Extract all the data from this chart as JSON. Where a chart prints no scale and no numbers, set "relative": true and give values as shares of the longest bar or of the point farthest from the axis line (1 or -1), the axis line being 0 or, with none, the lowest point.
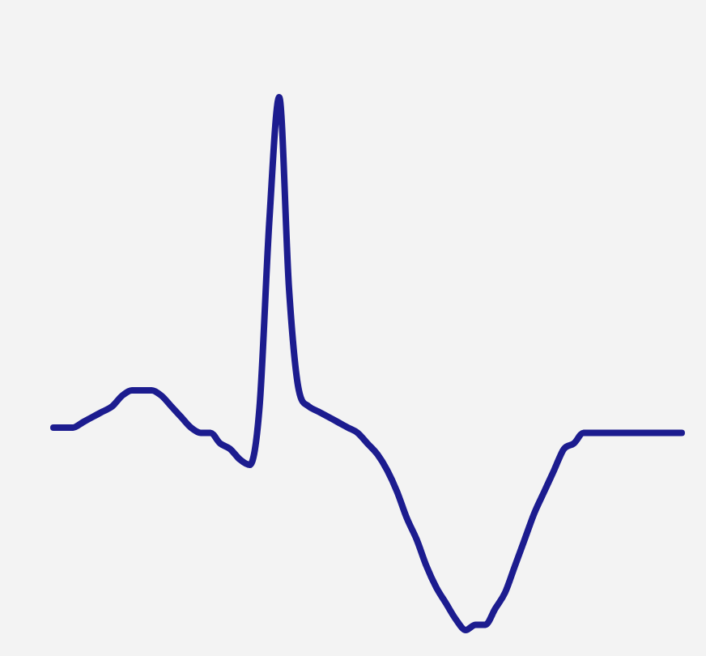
{
  "chart_data": {
    "type": "line",
    "relative": true,
    "legend": false,
    "marker": "none",
    "line_style": "solid",
    "categories": [
      null,
      null,
      null,
      null,
      null,
      null,
      null,
      null,
      null,
      null,
      null,
      null,
      null,
      null,
      null,
      null,
      null,
      null,
      null,
      null,
      null,
      null,
      null,
      null,
      null,
      null,
      null,
      null,
      null,
      null,
      null,
      null,
      null,
      null,
      null,
      null,
      null,
      null,
      null,
      null,
      null,
      null,
      null,
      null,
      null,
      null,
      null,
      null,
      null,
      null,
      null,
      null,
      null,
      null,
      null,
      null,
      null,
      null,
      null,
      null,
      null,
      null,
      null,
      null,
      null
    ],
    "series": [
      {
        "color": "#1c1c8f",
        "values": [
          0.38,
          0.38,
          0.38,
          0.39,
          0.4,
          0.41,
          0.42,
          0.44,
          0.45,
          0.45,
          0.45,
          0.44,
          0.42,
          0.4,
          0.38,
          0.37,
          0.37,
          0.35,
          0.34,
          0.32,
          0.31,
          0.42,
          0.77,
          1,
          0.64,
          0.45,
          0.42,
          0.41,
          0.4,
          0.39,
          0.38,
          0.37,
          0.35,
          0.33,
          0.3,
          0.26,
          0.21,
          0.17,
          0.12,
          0.08,
          0.05,
          0.02,
          0,
          0.01,
          0.01,
          0.04,
          0.07,
          0.12,
          0.17,
          0.22,
          0.26,
          0.3,
          0.34,
          0.35,
          0.37,
          0.37,
          0.37,
          0.37,
          0.37,
          0.37,
          0.37,
          0.37,
          0.37,
          0.37,
          0.37
        ]
      }
    ]
  }
}
